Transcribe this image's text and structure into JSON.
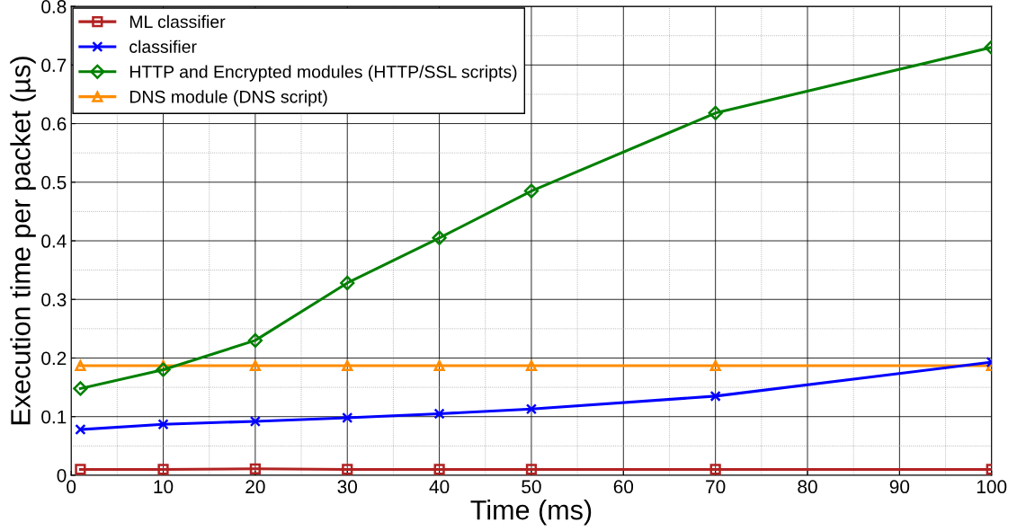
{
  "chart_data": {
    "type": "line",
    "xlabel": "Time (ms)",
    "ylabel": "Execution time per packet (µs)",
    "x": [
      1,
      10,
      20,
      30,
      40,
      50,
      70,
      100
    ],
    "series": [
      {
        "name": "ML classifier",
        "color": "#b22222",
        "marker": "square",
        "values": [
          0.01,
          0.01,
          0.011,
          0.01,
          0.01,
          0.01,
          0.01,
          0.01
        ]
      },
      {
        "name": "classifier",
        "color": "#0000ff",
        "marker": "cross",
        "values": [
          0.078,
          0.087,
          0.092,
          0.098,
          0.105,
          0.113,
          0.135,
          0.193
        ]
      },
      {
        "name": "HTTP and Encrypted modules (HTTP/SSL scripts)",
        "color": "#008000",
        "marker": "diamond",
        "values": [
          0.148,
          0.18,
          0.23,
          0.328,
          0.405,
          0.485,
          0.618,
          0.73
        ]
      },
      {
        "name": "DNS module (DNS script)",
        "color": "#ff8c00",
        "marker": "triangle",
        "values": [
          0.187,
          0.187,
          0.187,
          0.187,
          0.187,
          0.187,
          0.187,
          0.187
        ]
      }
    ],
    "xlim": [
      0,
      100
    ],
    "xticks": [
      0,
      10,
      20,
      30,
      40,
      50,
      60,
      70,
      80,
      90,
      100
    ],
    "ylim": [
      0,
      0.8
    ],
    "yticks": [
      0,
      0.1,
      0.2,
      0.3,
      0.4,
      0.5,
      0.6,
      0.7,
      0.8
    ],
    "grid": true,
    "legend": "top left",
    "line_style": "solid"
  }
}
